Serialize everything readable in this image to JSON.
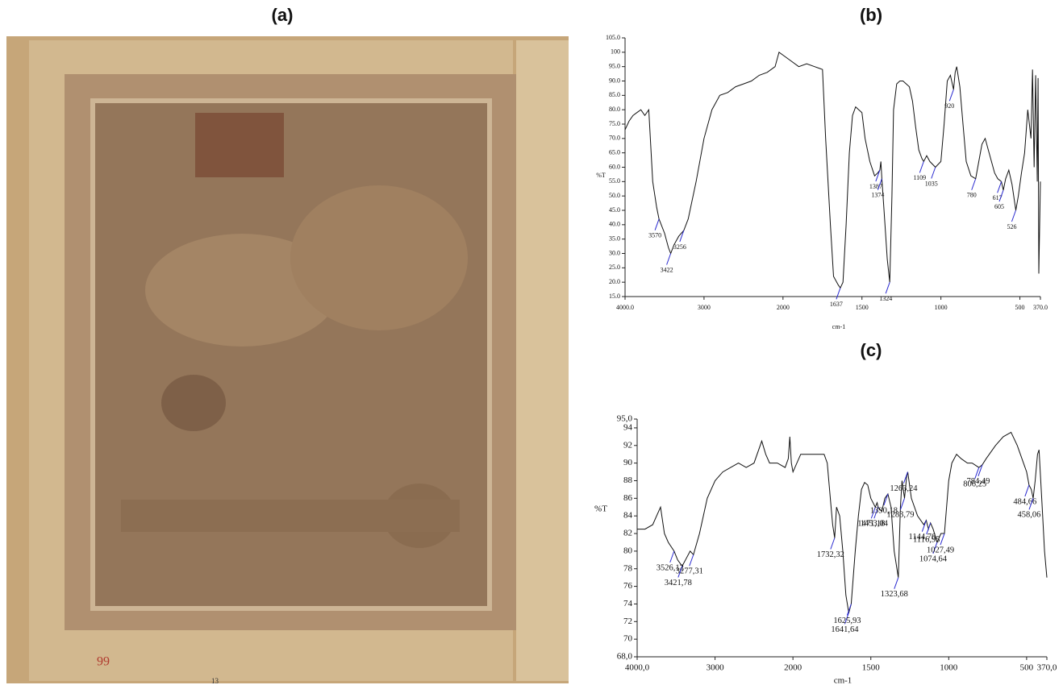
{
  "photo": {
    "title": "(a)",
    "markings": [
      "99",
      "13"
    ]
  },
  "chart_data": [
    {
      "type": "line",
      "title": "(b)",
      "x_label": "cm-1",
      "y_label": "%T",
      "color": "#111111",
      "xlim": [
        4000,
        370
      ],
      "xticks": [
        {
          "value": 4000,
          "label": "4000.0"
        },
        3000,
        2000,
        1500,
        1000,
        500,
        {
          "value": 370,
          "label": "370.0"
        }
      ],
      "ylim": [
        15,
        105
      ],
      "yticks": [
        {
          "value": 15,
          "label": "15.0"
        },
        {
          "value": 20,
          "label": "20.0"
        },
        {
          "value": 25,
          "label": "25.0"
        },
        {
          "value": 30,
          "label": "30.0"
        },
        {
          "value": 35,
          "label": "35.0"
        },
        {
          "value": 40,
          "label": "40.0"
        },
        {
          "value": 45,
          "label": "45.0"
        },
        {
          "value": 50,
          "label": "50.0"
        },
        {
          "value": 55,
          "label": "55.0"
        },
        {
          "value": 60,
          "label": "60.0"
        },
        {
          "value": 65,
          "label": "65.0"
        },
        {
          "value": 70,
          "label": "70.0"
        },
        {
          "value": 75,
          "label": "75.0"
        },
        {
          "value": 80,
          "label": "80.0"
        },
        {
          "value": 85,
          "label": "85.0"
        },
        {
          "value": 90,
          "label": "90.0"
        },
        {
          "value": 95,
          "label": "95.0"
        },
        {
          "value": 100,
          "label": "100"
        },
        {
          "value": 105,
          "label": "105.0"
        }
      ],
      "x": [
        4000,
        3950,
        3900,
        3850,
        3800,
        3750,
        3700,
        3650,
        3600,
        3570,
        3500,
        3450,
        3422,
        3380,
        3320,
        3256,
        3200,
        3100,
        3000,
        2900,
        2800,
        2700,
        2600,
        2500,
        2400,
        2300,
        2200,
        2100,
        2050,
        2000,
        1950,
        1900,
        1850,
        1800,
        1750,
        1730,
        1700,
        1680,
        1650,
        1637,
        1620,
        1600,
        1580,
        1560,
        1540,
        1520,
        1500,
        1480,
        1450,
        1420,
        1400,
        1387,
        1380,
        1374,
        1360,
        1340,
        1324,
        1310,
        1300,
        1280,
        1260,
        1240,
        1200,
        1180,
        1160,
        1140,
        1120,
        1109,
        1090,
        1070,
        1035,
        1000,
        980,
        960,
        940,
        920,
        910,
        900,
        880,
        860,
        840,
        810,
        780,
        760,
        740,
        720,
        700,
        680,
        660,
        640,
        617,
        605,
        590,
        570,
        550,
        526,
        510,
        490,
        470,
        450,
        430,
        420,
        410,
        400,
        390,
        385,
        380,
        370
      ],
      "values": [
        73,
        76,
        78,
        79,
        80,
        78,
        80,
        55,
        46,
        42,
        37,
        32,
        30,
        33,
        36,
        38,
        42,
        55,
        70,
        80,
        85,
        86,
        88,
        89,
        90,
        92,
        93,
        95,
        100,
        99,
        97,
        95,
        96,
        95,
        94,
        70,
        40,
        22,
        19,
        18,
        20,
        40,
        65,
        78,
        81,
        80,
        79,
        70,
        62,
        57,
        58,
        59,
        62,
        56,
        45,
        28,
        20,
        50,
        80,
        89,
        90,
        90,
        88,
        83,
        74,
        66,
        63,
        62,
        64,
        62,
        60,
        62,
        75,
        90,
        92,
        87,
        93,
        95,
        88,
        75,
        62,
        57,
        56,
        62,
        68,
        70,
        66,
        62,
        58,
        56,
        55,
        52,
        56,
        59,
        54,
        45,
        50,
        58,
        65,
        80,
        70,
        94,
        60,
        92,
        55,
        91,
        23,
        55
      ],
      "annotations": [
        {
          "x": 3570,
          "y": 42
        },
        {
          "x": 3422,
          "y": 30
        },
        {
          "x": 3256,
          "y": 38
        },
        {
          "x": 1637,
          "y": 18
        },
        {
          "x": 1387,
          "y": 59
        },
        {
          "x": 1374,
          "y": 56
        },
        {
          "x": 1324,
          "y": 20
        },
        {
          "x": 1109,
          "y": 62
        },
        {
          "x": 1035,
          "y": 60
        },
        {
          "x": 920,
          "y": 87
        },
        {
          "x": 780,
          "y": 56
        },
        {
          "x": 617,
          "y": 55
        },
        {
          "x": 605,
          "y": 52
        },
        {
          "x": 526,
          "y": 45
        }
      ]
    },
    {
      "type": "line",
      "title": "(c)",
      "x_label": "cm-1",
      "y_label": "%T",
      "color": "#111111",
      "xlim": [
        4000,
        370
      ],
      "xticks": [
        {
          "value": 4000,
          "label": "4000,0"
        },
        3000,
        2000,
        1500,
        1000,
        500,
        {
          "value": 370,
          "label": "370,0"
        }
      ],
      "ylim": [
        68,
        95
      ],
      "yticks": [
        {
          "value": 68,
          "label": "68,0"
        },
        70,
        72,
        74,
        76,
        78,
        80,
        82,
        84,
        86,
        88,
        90,
        92,
        94,
        {
          "value": 95,
          "label": "95,0"
        }
      ],
      "x": [
        4000,
        3900,
        3800,
        3750,
        3700,
        3650,
        3600,
        3526.12,
        3480,
        3421.78,
        3380,
        3320,
        3277.31,
        3200,
        3100,
        3000,
        2900,
        2800,
        2700,
        2600,
        2500,
        2400,
        2350,
        2300,
        2200,
        2100,
        2060,
        2040,
        2020,
        2000,
        1950,
        1900,
        1850,
        1800,
        1780,
        1760,
        1745,
        1732.32,
        1720,
        1700,
        1680,
        1660,
        1641.64,
        1625.93,
        1600,
        1580,
        1560,
        1540,
        1520,
        1500,
        1471.18,
        1460,
        1453.04,
        1430,
        1410,
        1390.18,
        1370,
        1350,
        1323.68,
        1310,
        1300,
        1283.79,
        1270,
        1263.24,
        1240,
        1200,
        1160,
        1144.76,
        1130,
        1116.95,
        1100,
        1074.64,
        1050,
        1027.49,
        1000,
        980,
        950,
        920,
        880,
        850,
        806.25,
        784.49,
        760,
        700,
        650,
        600,
        560,
        520,
        500,
        484.66,
        470,
        458.06,
        445,
        430,
        420,
        400,
        385,
        370
      ],
      "values": [
        82.5,
        82.5,
        83,
        84,
        85,
        82,
        81,
        80,
        79,
        78.3,
        79,
        80,
        79.6,
        82,
        86,
        88,
        89,
        89.5,
        90,
        89.5,
        90,
        92.5,
        91,
        90,
        90,
        89.5,
        90.5,
        93,
        90,
        89,
        91,
        91,
        91,
        91,
        90,
        86,
        83,
        81.5,
        85,
        84,
        80,
        75,
        73,
        74,
        80,
        84,
        87,
        87.8,
        87.5,
        86,
        85,
        85.5,
        85,
        84.5,
        86,
        86.5,
        85,
        80,
        77,
        85,
        88,
        86,
        88.5,
        89,
        86,
        84,
        83,
        83.5,
        82.5,
        83.2,
        82.5,
        81,
        82,
        82,
        88,
        90,
        91,
        90.5,
        90,
        90,
        89.5,
        89.8,
        90.5,
        92,
        93,
        93.5,
        92,
        90,
        89,
        87.5,
        87,
        86,
        88,
        91,
        91.5,
        85,
        80,
        77
      ],
      "annotations": [
        {
          "x": 3526.12,
          "y": 80,
          "label": "3526,12"
        },
        {
          "x": 3421.78,
          "y": 78.3,
          "label": "3421,78"
        },
        {
          "x": 3277.31,
          "y": 79.6,
          "label": "3277,31"
        },
        {
          "x": 1732.32,
          "y": 81.5,
          "label": "1732,32"
        },
        {
          "x": 1641.64,
          "y": 73,
          "label": "1641,64"
        },
        {
          "x": 1625.93,
          "y": 74,
          "label": "1625,93"
        },
        {
          "x": 1471.18,
          "y": 85,
          "label": "1471,18"
        },
        {
          "x": 1453.04,
          "y": 85,
          "label": "1453,04"
        },
        {
          "x": 1390.18,
          "y": 86.5,
          "label": "1390,18"
        },
        {
          "x": 1323.68,
          "y": 77,
          "label": "1323,68"
        },
        {
          "x": 1283.79,
          "y": 86,
          "label": "1283,79"
        },
        {
          "x": 1263.24,
          "y": 89,
          "label": "1263,24"
        },
        {
          "x": 1144.76,
          "y": 83.5,
          "label": "1144,76"
        },
        {
          "x": 1116.95,
          "y": 83.2,
          "label": "1116,95"
        },
        {
          "x": 1074.64,
          "y": 81,
          "label": "1074,64"
        },
        {
          "x": 1027.49,
          "y": 82,
          "label": "1027,49"
        },
        {
          "x": 806.25,
          "y": 89.5,
          "label": "806,25"
        },
        {
          "x": 784.49,
          "y": 89.8,
          "label": "784,49"
        },
        {
          "x": 484.66,
          "y": 87.5,
          "label": "484,66"
        },
        {
          "x": 458.06,
          "y": 86,
          "label": "458,06"
        }
      ]
    }
  ]
}
